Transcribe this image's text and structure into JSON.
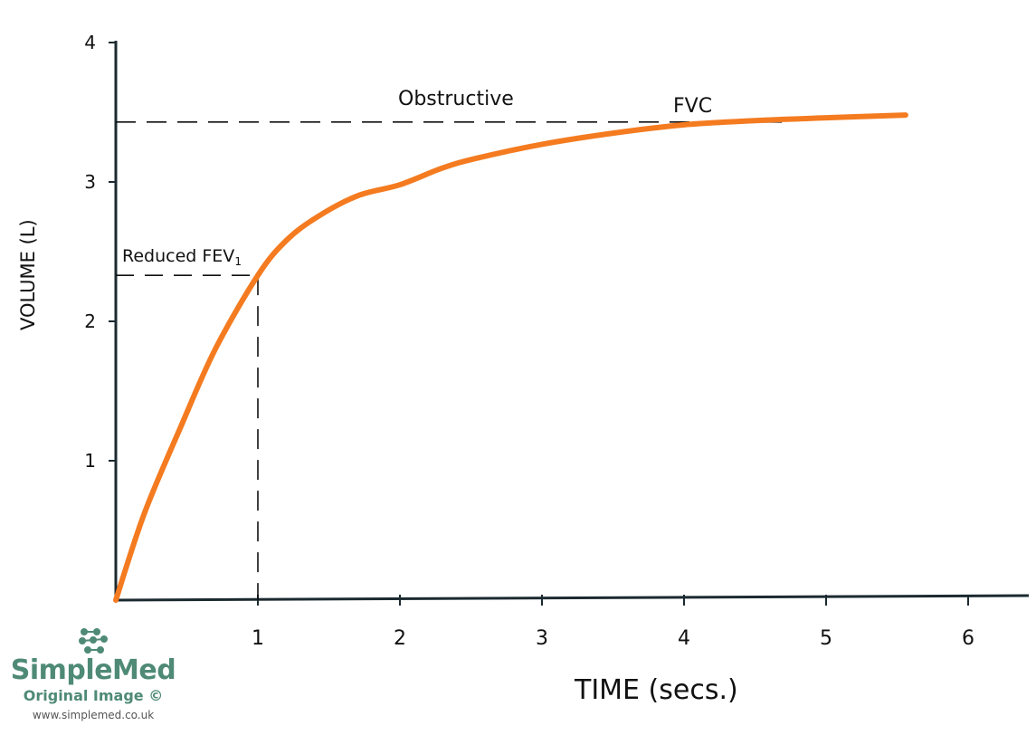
{
  "chart_data": {
    "type": "line",
    "title": "",
    "xlabel": "TIME (secs.)",
    "ylabel": "VOLUME (L)",
    "xlim": [
      0,
      6.5
    ],
    "ylim": [
      0,
      4
    ],
    "x_ticks": [
      "1",
      "2",
      "3",
      "4",
      "5",
      "6"
    ],
    "y_ticks": [
      "1",
      "2",
      "3",
      "4"
    ],
    "grid": false,
    "series": [
      {
        "color": "#f47b20",
        "x": [
          0,
          0.2,
          0.46,
          0.7,
          1.0,
          1.2,
          1.42,
          1.7,
          2.0,
          2.3,
          2.54,
          3.0,
          3.5,
          4.0,
          4.5,
          5.0,
          5.56
        ],
        "y": [
          0,
          0.62,
          1.25,
          1.8,
          2.33,
          2.58,
          2.75,
          2.9,
          2.98,
          3.1,
          3.17,
          3.27,
          3.35,
          3.41,
          3.44,
          3.46,
          3.48
        ]
      }
    ],
    "reference_lines": {
      "fev1": {
        "x": 1,
        "y": 2.33,
        "label": "Reduced FEV",
        "label_sub": "1"
      },
      "fvc": {
        "y": 3.43,
        "label": "FVC"
      }
    },
    "annotations": [
      "Obstructive"
    ],
    "axis_color": "#1b2a30",
    "line_color": "#f47b20"
  },
  "watermark": {
    "brand": "SimpleMed",
    "subtitle": "Original Image ©",
    "url": "www.simplemed.co.uk",
    "color": "#4f8a76"
  }
}
